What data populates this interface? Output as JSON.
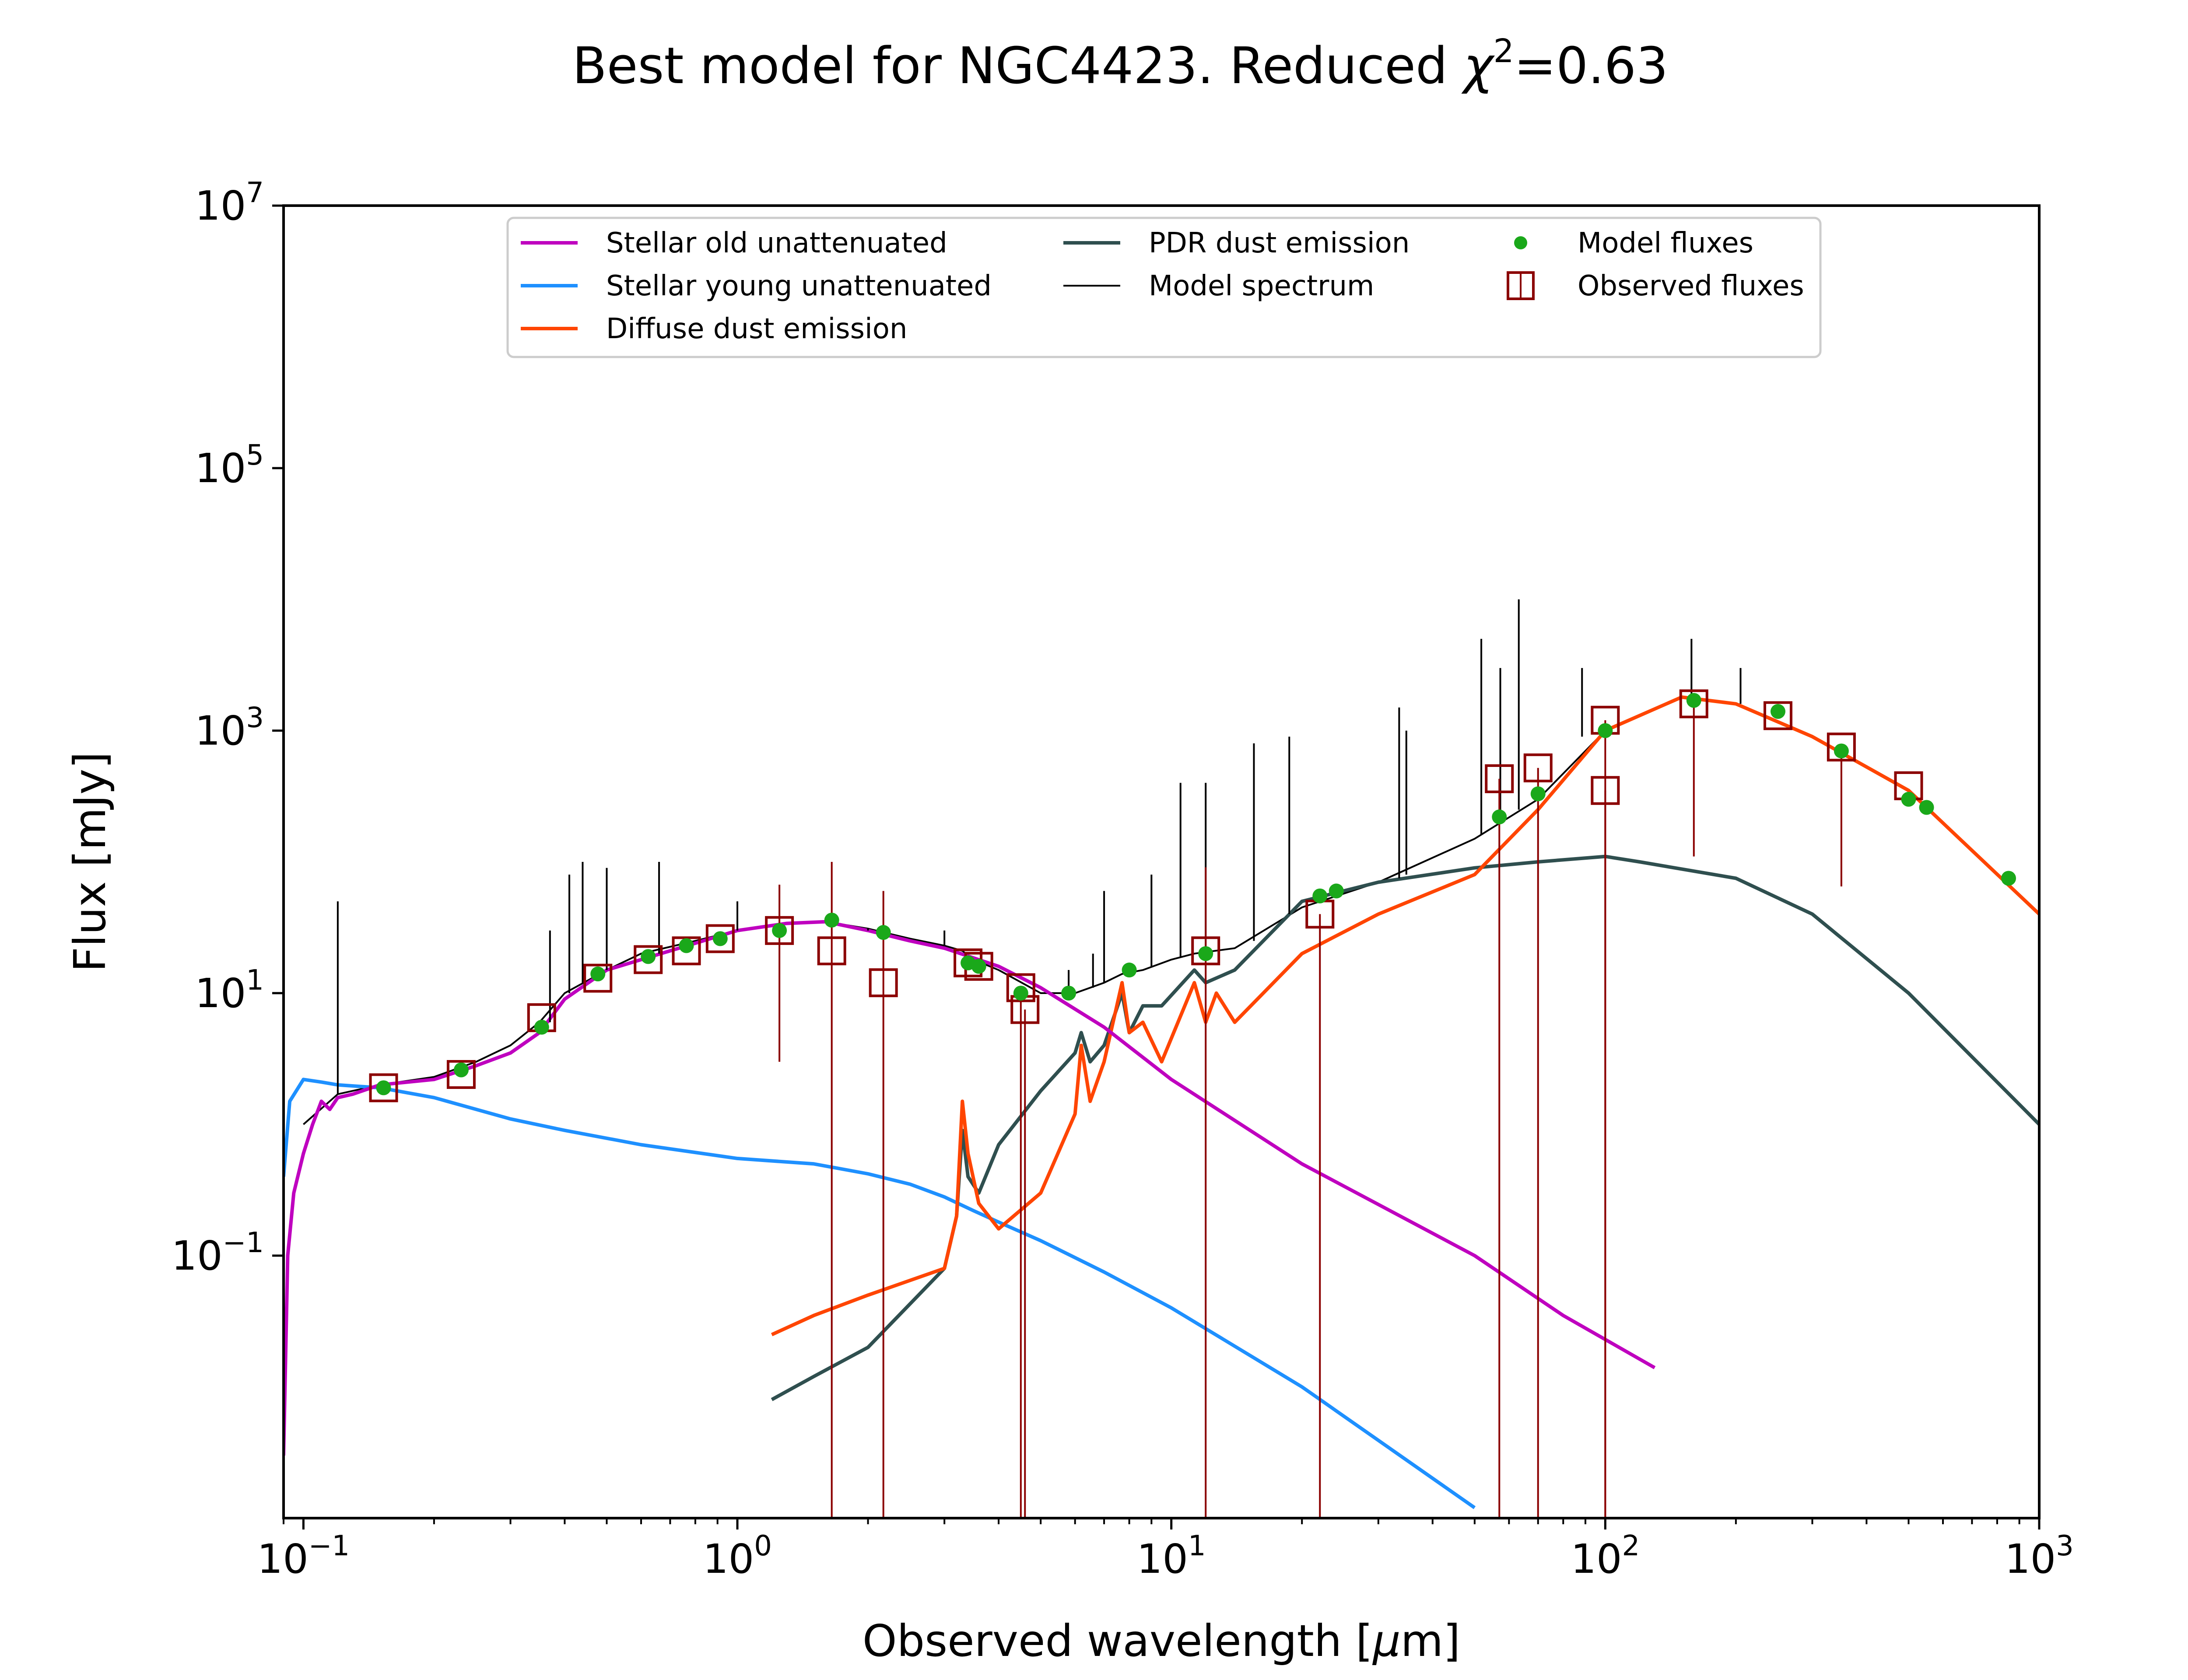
{
  "chart_data": {
    "type": "line",
    "title": "Best model for NGC4423. Reduced χ²=0.63",
    "title_parts": {
      "main": "Best model for NGC4423. Reduced ",
      "chi": "χ",
      "sup": "2",
      "value": "=0.63"
    },
    "xlabel": "Observed wavelength [μm]",
    "xlabel_parts": {
      "pre": "Observed wavelength [",
      "mu": "μ",
      "post": "m]"
    },
    "ylabel": "Flux [mJy]",
    "xscale": "log",
    "yscale": "log",
    "xlim": [
      0.09,
      1000
    ],
    "ylim": [
      0.001,
      10000000
    ],
    "x_ticks": [
      {
        "base": "10",
        "exp": "−1",
        "value": 0.1
      },
      {
        "base": "10",
        "exp": "0",
        "value": 1
      },
      {
        "base": "10",
        "exp": "1",
        "value": 10
      },
      {
        "base": "10",
        "exp": "2",
        "value": 100
      },
      {
        "base": "10",
        "exp": "3",
        "value": 1000
      }
    ],
    "y_ticks": [
      {
        "base": "10",
        "exp": "−1",
        "value": 0.1
      },
      {
        "base": "10",
        "exp": "1",
        "value": 10
      },
      {
        "base": "10",
        "exp": "3",
        "value": 1000
      },
      {
        "base": "10",
        "exp": "5",
        "value": 100000
      },
      {
        "base": "10",
        "exp": "7",
        "value": 10000000
      }
    ],
    "legend_position": "top-center",
    "series": [
      {
        "name": "Stellar old unattenuated",
        "color": "#BF00BF",
        "kind": "line",
        "x": [
          0.09,
          0.092,
          0.095,
          0.1,
          0.105,
          0.11,
          0.115,
          0.12,
          0.13,
          0.15,
          0.2,
          0.25,
          0.3,
          0.35,
          0.4,
          0.5,
          0.6,
          0.8,
          1.0,
          1.3,
          1.6,
          2.0,
          2.5,
          3.0,
          4.0,
          5.0,
          7.0,
          10,
          20,
          50,
          80,
          130
        ],
        "y": [
          0.003,
          0.1,
          0.3,
          0.6,
          1.0,
          1.5,
          1.3,
          1.6,
          1.7,
          2.0,
          2.2,
          2.8,
          3.5,
          5.0,
          9.0,
          15,
          18,
          24,
          30,
          34,
          35,
          30,
          25,
          22,
          16,
          11,
          5.5,
          2.2,
          0.5,
          0.1,
          0.035,
          0.014
        ]
      },
      {
        "name": "Stellar young unattenuated",
        "color": "#1E90FF",
        "kind": "line",
        "x": [
          0.09,
          0.093,
          0.1,
          0.11,
          0.12,
          0.15,
          0.2,
          0.3,
          0.4,
          0.6,
          1.0,
          1.5,
          2.0,
          2.5,
          3.0,
          3.5,
          4.0,
          5.0,
          7.0,
          10,
          20,
          50
        ],
        "y": [
          0.4,
          1.5,
          2.2,
          2.1,
          2.0,
          1.9,
          1.6,
          1.1,
          0.9,
          0.7,
          0.55,
          0.5,
          0.42,
          0.35,
          0.28,
          0.22,
          0.18,
          0.13,
          0.075,
          0.04,
          0.01,
          0.0012
        ]
      },
      {
        "name": "Diffuse dust emission",
        "color": "#FF4500",
        "kind": "line",
        "x": [
          1.2,
          1.5,
          2.0,
          3.0,
          3.2,
          3.3,
          3.4,
          3.6,
          4.0,
          5.0,
          6.0,
          6.2,
          6.5,
          7.0,
          7.7,
          8.0,
          8.6,
          9.5,
          11.3,
          12.0,
          12.7,
          14,
          20,
          30,
          50,
          70,
          100,
          150,
          200,
          300,
          500,
          1000
        ],
        "y": [
          0.025,
          0.035,
          0.05,
          0.08,
          0.2,
          1.5,
          0.6,
          0.25,
          0.16,
          0.3,
          1.2,
          4.0,
          1.5,
          3.0,
          12,
          5.0,
          6.0,
          3.0,
          12,
          6.0,
          10,
          6.0,
          20,
          40,
          80,
          250,
          1000,
          1800,
          1600,
          900,
          350,
          40
        ]
      },
      {
        "name": "PDR dust emission",
        "color": "#2F4F4F",
        "kind": "line",
        "x": [
          1.2,
          1.5,
          2.0,
          3.0,
          3.2,
          3.3,
          3.4,
          3.6,
          4.0,
          5.0,
          6.0,
          6.2,
          6.5,
          7.0,
          7.7,
          8.0,
          8.6,
          9.5,
          11.3,
          12.0,
          14,
          20,
          30,
          50,
          70,
          100,
          120,
          200,
          300,
          500,
          1000
        ],
        "y": [
          0.008,
          0.012,
          0.02,
          0.08,
          0.2,
          0.9,
          0.4,
          0.3,
          0.7,
          1.8,
          3.5,
          5.0,
          3.0,
          4.0,
          10,
          5.0,
          8.0,
          8.0,
          15,
          12,
          15,
          50,
          70,
          90,
          100,
          110,
          100,
          75,
          40,
          10,
          1.0
        ]
      },
      {
        "name": "Model spectrum",
        "color": "#000000",
        "kind": "line",
        "x": [
          0.1,
          0.12,
          0.15,
          0.2,
          0.25,
          0.3,
          0.35,
          0.4,
          0.5,
          0.6,
          0.8,
          1.0,
          1.3,
          1.6,
          2.0,
          2.5,
          3.0,
          3.3,
          3.5,
          4.0,
          5.0,
          6.0,
          7.0,
          7.7,
          8.6,
          10,
          11.3,
          14,
          20,
          30,
          50,
          70,
          100,
          150,
          200,
          300,
          500,
          1000
        ],
        "y": [
          1.0,
          1.7,
          2.0,
          2.3,
          3.0,
          4.0,
          6.0,
          10,
          15,
          20,
          25,
          30,
          34,
          35,
          31,
          26,
          23,
          21,
          18,
          15,
          10,
          10,
          12,
          14,
          15,
          18,
          20,
          22,
          45,
          70,
          150,
          300,
          1000,
          1800,
          1600,
          900,
          350,
          40
        ]
      },
      {
        "name": "Model fluxes",
        "color": "#1AA81A",
        "kind": "scatter",
        "x": [
          0.153,
          0.231,
          0.354,
          0.477,
          0.623,
          0.763,
          0.913,
          1.25,
          1.65,
          2.17,
          3.4,
          3.6,
          4.5,
          5.8,
          8.0,
          12,
          22,
          24,
          57,
          70,
          100,
          160,
          250,
          350,
          500,
          550,
          850
        ],
        "y": [
          1.9,
          2.6,
          5.5,
          14,
          19,
          23,
          26,
          30,
          36,
          29,
          17,
          16,
          10,
          10,
          15,
          20,
          55,
          60,
          220,
          330,
          1000,
          1700,
          1400,
          700,
          300,
          260,
          75
        ]
      },
      {
        "name": "Observed fluxes",
        "color": "#8B0000",
        "kind": "errorbar",
        "x": [
          0.153,
          0.231,
          0.354,
          0.477,
          0.623,
          0.763,
          0.913,
          1.25,
          1.65,
          2.17,
          3.4,
          3.6,
          4.5,
          4.6,
          12,
          22,
          57,
          70,
          100,
          100,
          160,
          250,
          350,
          500
        ],
        "y": [
          1.9,
          2.4,
          6.5,
          13,
          18,
          21,
          26,
          30,
          21,
          12,
          17,
          16,
          11,
          7.5,
          21,
          40,
          430,
          520,
          1200,
          350,
          1600,
          1300,
          750,
          380
        ],
        "yerr_low": [
          0,
          0,
          0,
          0,
          0,
          0,
          0,
          27,
          21,
          12,
          0,
          0,
          11,
          7.5,
          21,
          40,
          430,
          520,
          1200,
          350,
          1490,
          0,
          685,
          0
        ],
        "yerr_high": [
          0,
          0,
          0,
          0,
          0,
          0,
          0,
          37,
          79,
          48,
          0,
          0,
          0,
          0,
          70,
          0,
          0,
          0,
          0,
          0,
          0,
          0,
          0,
          0
        ]
      }
    ],
    "annotations": {
      "spike_color": "#000000",
      "spikes_x": [
        0.12,
        0.37,
        0.41,
        0.44,
        0.5,
        0.66,
        1.0,
        2.0,
        3.0,
        5.8,
        6.6,
        7.0,
        9.0,
        10.5,
        12.0,
        15.5,
        18.7,
        33.5,
        34.8,
        51.8,
        57.3,
        63.2,
        88.4,
        158,
        205
      ],
      "spikes_peak": [
        50,
        30,
        80,
        100,
        90,
        100,
        50,
        30,
        30,
        15,
        20,
        60,
        80,
        400,
        400,
        800,
        900,
        1500,
        1000,
        5000,
        3000,
        10000,
        3000,
        5000,
        3000
      ],
      "spikes_base": [
        1.7,
        6.0,
        10,
        12,
        15,
        20,
        30,
        31,
        23,
        10,
        11,
        12,
        16,
        19,
        20,
        25,
        40,
        75,
        80,
        160,
        200,
        250,
        900,
        1800,
        1600
      ]
    }
  }
}
